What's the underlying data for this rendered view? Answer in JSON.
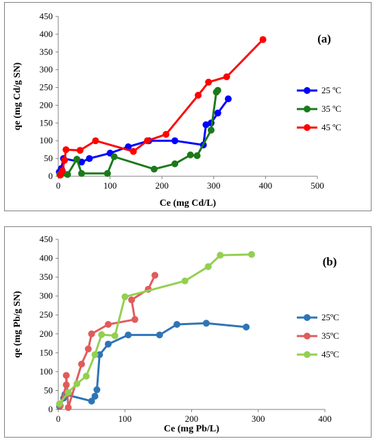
{
  "chart_data": [
    {
      "type": "line",
      "panel_label": "(a)",
      "xlabel": "Ce (mg Cd/L)",
      "ylabel": "qe (mg Cd/g SN)",
      "xlim": [
        0,
        500
      ],
      "ylim": [
        0,
        450
      ],
      "xticks": [
        0,
        100,
        200,
        300,
        400,
        500
      ],
      "yticks": [
        0,
        50,
        100,
        150,
        200,
        250,
        300,
        350,
        400,
        450
      ],
      "grid": false,
      "legend_position": "right",
      "series": [
        {
          "name": "25 ºC",
          "color": "#0000ff",
          "points": [
            [
              2,
              12
            ],
            [
              6,
              22
            ],
            [
              10,
              50
            ],
            [
              45,
              40
            ],
            [
              60,
              50
            ],
            [
              100,
              65
            ],
            [
              135,
              83
            ],
            [
              175,
              100
            ],
            [
              225,
              100
            ],
            [
              280,
              88
            ],
            [
              285,
              145
            ],
            [
              295,
              150
            ],
            [
              308,
              178
            ],
            [
              328,
              218
            ]
          ]
        },
        {
          "name": "35 ºC",
          "color": "#1a7a1a",
          "points": [
            [
              3,
              5
            ],
            [
              8,
              8
            ],
            [
              18,
              5
            ],
            [
              36,
              48
            ],
            [
              45,
              8
            ],
            [
              95,
              8
            ],
            [
              108,
              55
            ],
            [
              185,
              20
            ],
            [
              225,
              35
            ],
            [
              255,
              60
            ],
            [
              268,
              58
            ],
            [
              295,
              130
            ],
            [
              305,
              237
            ],
            [
              308,
              242
            ]
          ]
        },
        {
          "name": "45 ºC",
          "color": "#ff0000",
          "points": [
            [
              4,
              3
            ],
            [
              8,
              15
            ],
            [
              12,
              45
            ],
            [
              15,
              75
            ],
            [
              42,
              73
            ],
            [
              72,
              100
            ],
            [
              145,
              70
            ],
            [
              172,
              100
            ],
            [
              208,
              118
            ],
            [
              270,
              228
            ],
            [
              290,
              265
            ],
            [
              325,
              280
            ],
            [
              395,
              385
            ]
          ]
        }
      ]
    },
    {
      "type": "line",
      "panel_label": "(b)",
      "xlabel": "Ce (mg Pb/L)",
      "ylabel": "qe (mg Pb/g SN)",
      "xlim": [
        0,
        400
      ],
      "ylim": [
        0,
        450
      ],
      "xticks": [
        0,
        100,
        200,
        300,
        400
      ],
      "yticks": [
        0,
        50,
        100,
        150,
        200,
        250,
        300,
        350,
        400,
        450
      ],
      "grid": false,
      "legend_position": "right",
      "series": [
        {
          "name": "25ºC",
          "color": "#2e75b6",
          "points": [
            [
              2,
              8
            ],
            [
              8,
              30
            ],
            [
              10,
              40
            ],
            [
              50,
              22
            ],
            [
              55,
              35
            ],
            [
              58,
              52
            ],
            [
              62,
              145
            ],
            [
              75,
              173
            ],
            [
              105,
              197
            ],
            [
              152,
              197
            ],
            [
              178,
              225
            ],
            [
              222,
              228
            ],
            [
              282,
              218
            ]
          ]
        },
        {
          "name": "35ºC",
          "color": "#e05c5c",
          "points": [
            [
              3,
              10
            ],
            [
              12,
              65
            ],
            [
              12,
              90
            ],
            [
              15,
              5
            ],
            [
              35,
              120
            ],
            [
              45,
              160
            ],
            [
              50,
              200
            ],
            [
              75,
              225
            ],
            [
              115,
              238
            ],
            [
              110,
              290
            ],
            [
              135,
              318
            ],
            [
              145,
              355
            ]
          ]
        },
        {
          "name": "45ºC",
          "color": "#92d050",
          "points": [
            [
              2,
              15
            ],
            [
              15,
              45
            ],
            [
              28,
              68
            ],
            [
              42,
              88
            ],
            [
              55,
              145
            ],
            [
              65,
              198
            ],
            [
              85,
              195
            ],
            [
              100,
              298
            ],
            [
              190,
              340
            ],
            [
              225,
              378
            ],
            [
              243,
              408
            ],
            [
              290,
              410
            ]
          ]
        }
      ]
    }
  ]
}
